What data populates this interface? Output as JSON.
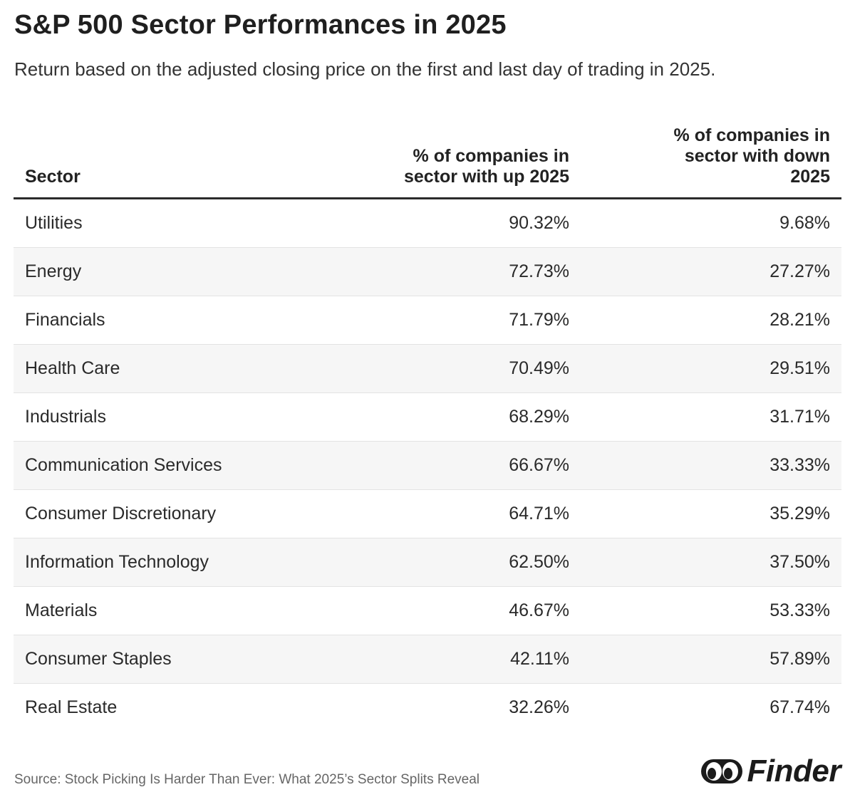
{
  "header": {
    "title": "S&P 500 Sector Performances in 2025",
    "subtitle": "Return based on the adjusted closing price on the first and last day of trading in 2025."
  },
  "chart_data": {
    "type": "table",
    "columns": [
      "Sector",
      "% of companies in sector with up 2025",
      "% of companies in sector with down 2025"
    ],
    "rows": [
      [
        "Utilities",
        "90.32%",
        "9.68%"
      ],
      [
        "Energy",
        "72.73%",
        "27.27%"
      ],
      [
        "Financials",
        "71.79%",
        "28.21%"
      ],
      [
        "Health Care",
        "70.49%",
        "29.51%"
      ],
      [
        "Industrials",
        "68.29%",
        "31.71%"
      ],
      [
        "Communication Services",
        "66.67%",
        "33.33%"
      ],
      [
        "Consumer Discretionary",
        "64.71%",
        "35.29%"
      ],
      [
        "Information Technology",
        "62.50%",
        "37.50%"
      ],
      [
        "Materials",
        "46.67%",
        "53.33%"
      ],
      [
        "Consumer Staples",
        "42.11%",
        "57.89%"
      ],
      [
        "Real Estate",
        "32.26%",
        "67.74%"
      ]
    ]
  },
  "footer": {
    "source": "Source: Stock Picking Is Harder Than Ever: What 2025’s Sector Splits Reveal",
    "logo_text": "Finder",
    "logo_icon": "finder-eyes-icon"
  },
  "colors": {
    "text": "#222222",
    "row_alt": "#f6f6f6",
    "header_rule": "#2b2b2b"
  }
}
